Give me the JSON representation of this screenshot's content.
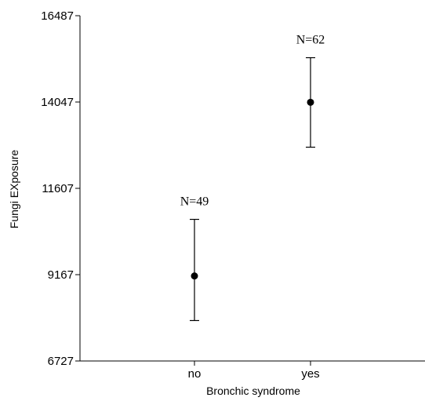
{
  "chart_data": {
    "type": "scatter",
    "title": "",
    "xlabel": "Bronchic syndrome",
    "ylabel": "Fungi EXposure",
    "categories": [
      "no",
      "yes"
    ],
    "ylim": [
      6727,
      16487
    ],
    "yticks": [
      6727,
      9167,
      11607,
      14047,
      16487
    ],
    "ytick_labels": [
      "6727",
      "9167",
      "11607",
      "14047",
      "16487"
    ],
    "points": [
      {
        "category": "no",
        "mean": 9130,
        "lower": 7870,
        "upper": 10730,
        "n_label": "N=49"
      },
      {
        "category": "yes",
        "mean": 14040,
        "lower": 12770,
        "upper": 15300,
        "n_label": "N=62"
      }
    ],
    "grid": false,
    "legend": "none"
  }
}
